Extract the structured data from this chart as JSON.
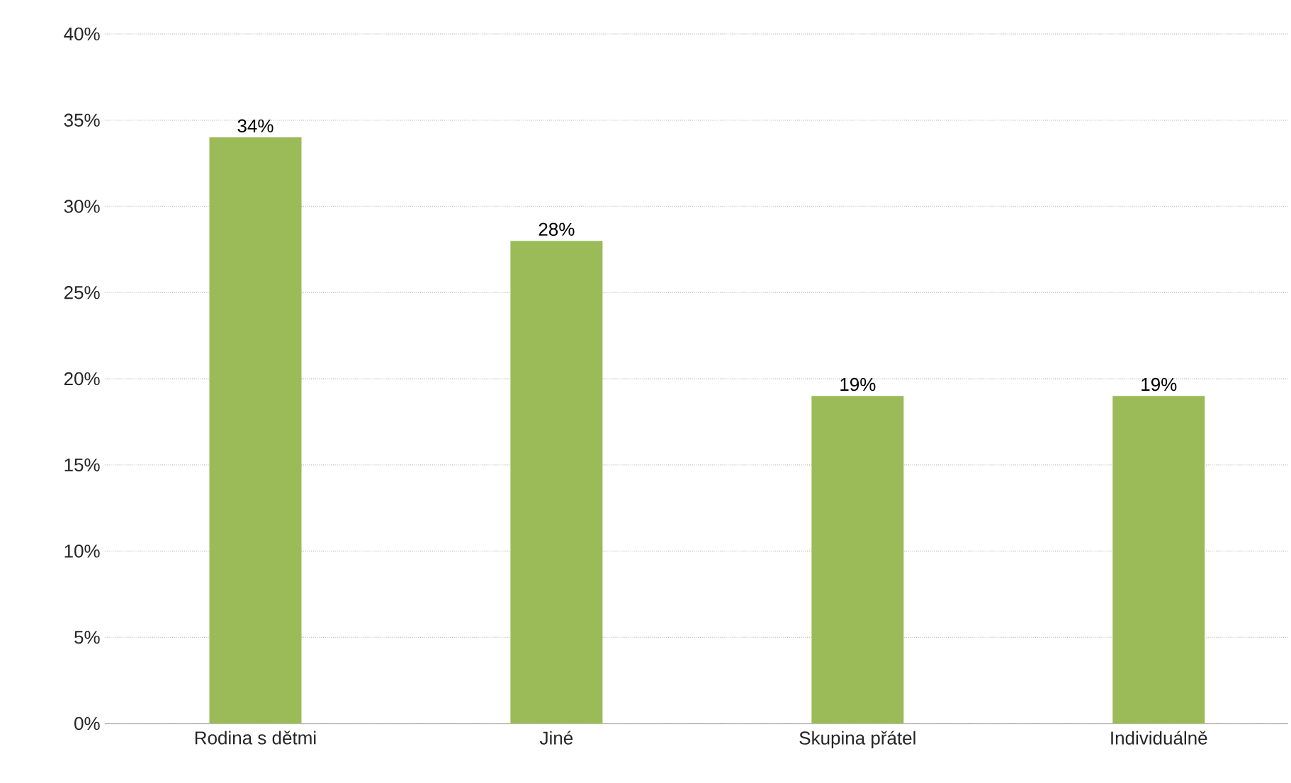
{
  "chart_data": {
    "type": "bar",
    "categories": [
      "Rodina s dětmi",
      "Jiné",
      "Skupina přátel",
      "Individuálně"
    ],
    "values": [
      34,
      28,
      19,
      19
    ],
    "value_labels": [
      "34%",
      "28%",
      "19%",
      "19%"
    ],
    "color": "#9bbb59",
    "ylim": [
      0,
      40
    ],
    "yticks": [
      {
        "value": 0,
        "label": "0%"
      },
      {
        "value": 5,
        "label": "5%"
      },
      {
        "value": 10,
        "label": "10%"
      },
      {
        "value": 15,
        "label": "15%"
      },
      {
        "value": 20,
        "label": "20%"
      },
      {
        "value": 25,
        "label": "25%"
      },
      {
        "value": 30,
        "label": "30%"
      },
      {
        "value": 35,
        "label": "35%"
      },
      {
        "value": 40,
        "label": "40%"
      }
    ],
    "grid": "y"
  }
}
